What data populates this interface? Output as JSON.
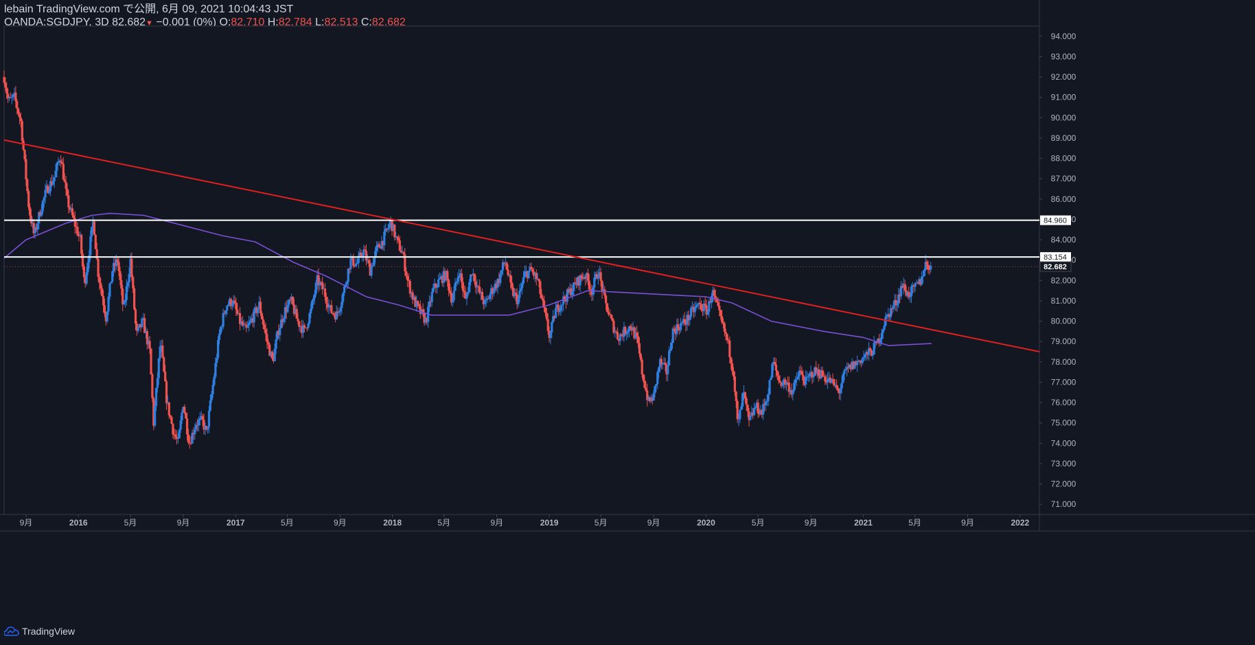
{
  "header": {
    "publisher": "lebain TradingView.com で公開, 6月 09, 2021 10:04:43 JST",
    "symbol": "OANDA:SGDJPY, 3D",
    "last": "82.682",
    "change": "−0.001 (0%)",
    "o_label": "O:",
    "o_value": "82.710",
    "h_label": "H:",
    "h_value": "82.784",
    "l_label": "L:",
    "l_value": "82.513",
    "c_label": "C:",
    "c_value": "82.682"
  },
  "footer": {
    "brand": "TradingView"
  },
  "colors": {
    "background": "#131722",
    "up": "#2f7fe0",
    "down": "#ef5350",
    "trendline": "#e02020",
    "ma": "#7b4fd6",
    "level": "#ffffff"
  },
  "chart_data": {
    "type": "candlestick",
    "symbol": "OANDA:SGDJPY",
    "interval": "3D",
    "ylim": [
      70.5,
      94.5
    ],
    "yticks": [
      "71.000",
      "72.000",
      "73.000",
      "74.000",
      "75.000",
      "76.000",
      "77.000",
      "78.000",
      "79.000",
      "80.000",
      "81.000",
      "82.000",
      "83.000",
      "84.000",
      "85.000",
      "86.000",
      "87.000",
      "88.000",
      "89.000",
      "90.000",
      "91.000",
      "92.000",
      "93.000",
      "94.000"
    ],
    "xlim": [
      "2015-07-12",
      "2022-02-15"
    ],
    "xticks": [
      {
        "date": "2015-09-01",
        "label": "9月"
      },
      {
        "date": "2016-01-01",
        "label": "2016"
      },
      {
        "date": "2016-05-01",
        "label": "5月"
      },
      {
        "date": "2016-09-01",
        "label": "9月"
      },
      {
        "date": "2017-01-01",
        "label": "2017"
      },
      {
        "date": "2017-05-01",
        "label": "5月"
      },
      {
        "date": "2017-09-01",
        "label": "9月"
      },
      {
        "date": "2018-01-01",
        "label": "2018"
      },
      {
        "date": "2018-05-01",
        "label": "5月"
      },
      {
        "date": "2018-09-01",
        "label": "9月"
      },
      {
        "date": "2019-01-01",
        "label": "2019"
      },
      {
        "date": "2019-05-01",
        "label": "5月"
      },
      {
        "date": "2019-09-01",
        "label": "9月"
      },
      {
        "date": "2020-01-01",
        "label": "2020"
      },
      {
        "date": "2020-05-01",
        "label": "5月"
      },
      {
        "date": "2020-09-01",
        "label": "9月"
      },
      {
        "date": "2021-01-01",
        "label": "2021"
      },
      {
        "date": "2021-05-01",
        "label": "5月"
      },
      {
        "date": "2021-09-01",
        "label": "9月"
      },
      {
        "date": "2022-01-01",
        "label": "2022"
      }
    ],
    "price_path": [
      [
        "2015-07-12",
        92.0
      ],
      [
        "2015-07-22",
        90.8
      ],
      [
        "2015-08-05",
        91.0
      ],
      [
        "2015-08-20",
        89.8
      ],
      [
        "2015-08-30",
        87.5
      ],
      [
        "2015-09-08",
        85.5
      ],
      [
        "2015-09-20",
        84.2
      ],
      [
        "2015-10-05",
        85.5
      ],
      [
        "2015-10-20",
        86.5
      ],
      [
        "2015-11-05",
        87.0
      ],
      [
        "2015-11-20",
        88.2
      ],
      [
        "2015-12-05",
        86.0
      ],
      [
        "2015-12-20",
        85.0
      ],
      [
        "2016-01-05",
        84.0
      ],
      [
        "2016-01-15",
        81.8
      ],
      [
        "2016-02-05",
        85.0
      ],
      [
        "2016-02-15",
        82.5
      ],
      [
        "2016-03-05",
        80.2
      ],
      [
        "2016-03-20",
        82.5
      ],
      [
        "2016-04-01",
        83.0
      ],
      [
        "2016-04-15",
        80.5
      ],
      [
        "2016-05-01",
        83.0
      ],
      [
        "2016-05-15",
        79.3
      ],
      [
        "2016-05-30",
        80.0
      ],
      [
        "2016-06-15",
        78.5
      ],
      [
        "2016-06-24",
        75.0
      ],
      [
        "2016-07-10",
        79.0
      ],
      [
        "2016-07-25",
        76.0
      ],
      [
        "2016-08-10",
        74.5
      ],
      [
        "2016-08-20",
        74.0
      ],
      [
        "2016-09-01",
        76.0
      ],
      [
        "2016-09-15",
        74.0
      ],
      [
        "2016-10-01",
        75.0
      ],
      [
        "2016-10-15",
        75.1
      ],
      [
        "2016-10-25",
        74.5
      ],
      [
        "2016-11-10",
        77.0
      ],
      [
        "2016-11-25",
        79.5
      ],
      [
        "2016-12-10",
        80.8
      ],
      [
        "2016-12-25",
        81.0
      ],
      [
        "2017-01-10",
        80.0
      ],
      [
        "2017-01-25",
        79.5
      ],
      [
        "2017-02-10",
        80.2
      ],
      [
        "2017-02-25",
        80.8
      ],
      [
        "2017-03-15",
        79.0
      ],
      [
        "2017-03-28",
        78.0
      ],
      [
        "2017-04-10",
        79.5
      ],
      [
        "2017-04-25",
        80.5
      ],
      [
        "2017-05-10",
        81.0
      ],
      [
        "2017-05-25",
        80.0
      ],
      [
        "2017-06-10",
        79.5
      ],
      [
        "2017-06-25",
        80.5
      ],
      [
        "2017-07-10",
        82.0
      ],
      [
        "2017-07-25",
        81.5
      ],
      [
        "2017-08-10",
        80.5
      ],
      [
        "2017-08-25",
        80.3
      ],
      [
        "2017-09-10",
        81.5
      ],
      [
        "2017-09-25",
        83.0
      ],
      [
        "2017-10-10",
        82.8
      ],
      [
        "2017-10-25",
        83.5
      ],
      [
        "2017-11-10",
        82.5
      ],
      [
        "2017-11-25",
        83.5
      ],
      [
        "2017-12-10",
        84.0
      ],
      [
        "2017-12-28",
        84.9
      ],
      [
        "2018-01-10",
        84.0
      ],
      [
        "2018-01-25",
        83.3
      ],
      [
        "2018-02-05",
        82.0
      ],
      [
        "2018-02-20",
        81.0
      ],
      [
        "2018-03-05",
        80.5
      ],
      [
        "2018-03-20",
        80.0
      ],
      [
        "2018-04-05",
        81.5
      ],
      [
        "2018-04-20",
        82.0
      ],
      [
        "2018-05-05",
        82.3
      ],
      [
        "2018-05-20",
        81.0
      ],
      [
        "2018-06-05",
        82.5
      ],
      [
        "2018-06-20",
        81.0
      ],
      [
        "2018-07-05",
        82.5
      ],
      [
        "2018-07-20",
        81.5
      ],
      [
        "2018-08-05",
        80.8
      ],
      [
        "2018-08-20",
        81.5
      ],
      [
        "2018-09-05",
        82.0
      ],
      [
        "2018-09-20",
        83.0
      ],
      [
        "2018-10-05",
        81.5
      ],
      [
        "2018-10-20",
        81.0
      ],
      [
        "2018-11-05",
        82.3
      ],
      [
        "2018-11-20",
        82.5
      ],
      [
        "2018-12-05",
        82.0
      ],
      [
        "2018-12-20",
        80.5
      ],
      [
        "2019-01-02",
        79.2
      ],
      [
        "2019-01-15",
        80.5
      ],
      [
        "2019-02-01",
        81.0
      ],
      [
        "2019-02-20",
        81.5
      ],
      [
        "2019-03-10",
        82.0
      ],
      [
        "2019-03-25",
        82.3
      ],
      [
        "2019-04-10",
        81.5
      ],
      [
        "2019-04-25",
        82.5
      ],
      [
        "2019-05-10",
        81.0
      ],
      [
        "2019-05-25",
        80.0
      ],
      [
        "2019-06-10",
        79.2
      ],
      [
        "2019-06-25",
        79.5
      ],
      [
        "2019-07-10",
        79.8
      ],
      [
        "2019-07-25",
        79.0
      ],
      [
        "2019-08-05",
        77.5
      ],
      [
        "2019-08-20",
        76.0
      ],
      [
        "2019-09-01",
        76.3
      ],
      [
        "2019-09-15",
        78.0
      ],
      [
        "2019-10-01",
        77.5
      ],
      [
        "2019-10-15",
        79.5
      ],
      [
        "2019-11-01",
        79.8
      ],
      [
        "2019-11-15",
        80.0
      ],
      [
        "2019-12-01",
        80.5
      ],
      [
        "2019-12-15",
        80.8
      ],
      [
        "2020-01-05",
        80.5
      ],
      [
        "2020-01-15",
        81.5
      ],
      [
        "2020-02-05",
        80.0
      ],
      [
        "2020-02-20",
        79.0
      ],
      [
        "2020-03-05",
        77.5
      ],
      [
        "2020-03-15",
        74.8
      ],
      [
        "2020-03-28",
        76.5
      ],
      [
        "2020-04-10",
        75.0
      ],
      [
        "2020-04-25",
        75.8
      ],
      [
        "2020-05-10",
        75.5
      ],
      [
        "2020-05-25",
        76.5
      ],
      [
        "2020-06-05",
        78.0
      ],
      [
        "2020-06-20",
        77.0
      ],
      [
        "2020-07-05",
        77.0
      ],
      [
        "2020-07-20",
        76.5
      ],
      [
        "2020-08-05",
        77.5
      ],
      [
        "2020-08-20",
        77.0
      ],
      [
        "2020-09-05",
        77.5
      ],
      [
        "2020-09-20",
        77.5
      ],
      [
        "2020-10-05",
        77.2
      ],
      [
        "2020-10-20",
        77.0
      ],
      [
        "2020-11-05",
        76.5
      ],
      [
        "2020-11-20",
        77.5
      ],
      [
        "2020-12-05",
        77.8
      ],
      [
        "2020-12-20",
        78.0
      ],
      [
        "2021-01-05",
        78.3
      ],
      [
        "2021-01-20",
        78.5
      ],
      [
        "2021-02-05",
        79.0
      ],
      [
        "2021-02-20",
        80.0
      ],
      [
        "2021-03-05",
        80.5
      ],
      [
        "2021-03-20",
        81.0
      ],
      [
        "2021-04-01",
        81.8
      ],
      [
        "2021-04-15",
        81.3
      ],
      [
        "2021-05-01",
        81.6
      ],
      [
        "2021-05-15",
        82.0
      ],
      [
        "2021-05-25",
        82.8
      ],
      [
        "2021-06-09",
        82.682
      ]
    ],
    "ma_path": [
      [
        "2015-07-12",
        83.1
      ],
      [
        "2015-09-01",
        84.0
      ],
      [
        "2015-12-01",
        84.8
      ],
      [
        "2016-02-01",
        85.2
      ],
      [
        "2016-03-15",
        85.3
      ],
      [
        "2016-06-01",
        85.2
      ],
      [
        "2016-09-01",
        84.7
      ],
      [
        "2016-12-01",
        84.2
      ],
      [
        "2017-02-15",
        83.9
      ],
      [
        "2017-05-15",
        82.9
      ],
      [
        "2017-08-01",
        82.2
      ],
      [
        "2017-11-01",
        81.2
      ],
      [
        "2018-01-15",
        80.8
      ],
      [
        "2018-04-01",
        80.3
      ],
      [
        "2018-07-01",
        80.3
      ],
      [
        "2018-10-01",
        80.3
      ],
      [
        "2019-01-01",
        80.8
      ],
      [
        "2019-04-01",
        81.5
      ],
      [
        "2019-07-01",
        81.4
      ],
      [
        "2019-10-01",
        81.3
      ],
      [
        "2020-01-01",
        81.2
      ],
      [
        "2020-03-01",
        80.9
      ],
      [
        "2020-06-01",
        80.0
      ],
      [
        "2020-10-01",
        79.5
      ],
      [
        "2021-01-01",
        79.2
      ],
      [
        "2021-03-01",
        78.8
      ],
      [
        "2021-06-09",
        78.9
      ]
    ],
    "trendline": {
      "from": [
        "2015-07-12",
        88.9
      ],
      "to": [
        "2022-02-15",
        78.5
      ]
    },
    "horizontal_levels": [
      84.96,
      83.154
    ],
    "level_labels": [
      "84.960",
      "83.154"
    ],
    "current_price": 82.682,
    "current_price_label": "82.682"
  }
}
